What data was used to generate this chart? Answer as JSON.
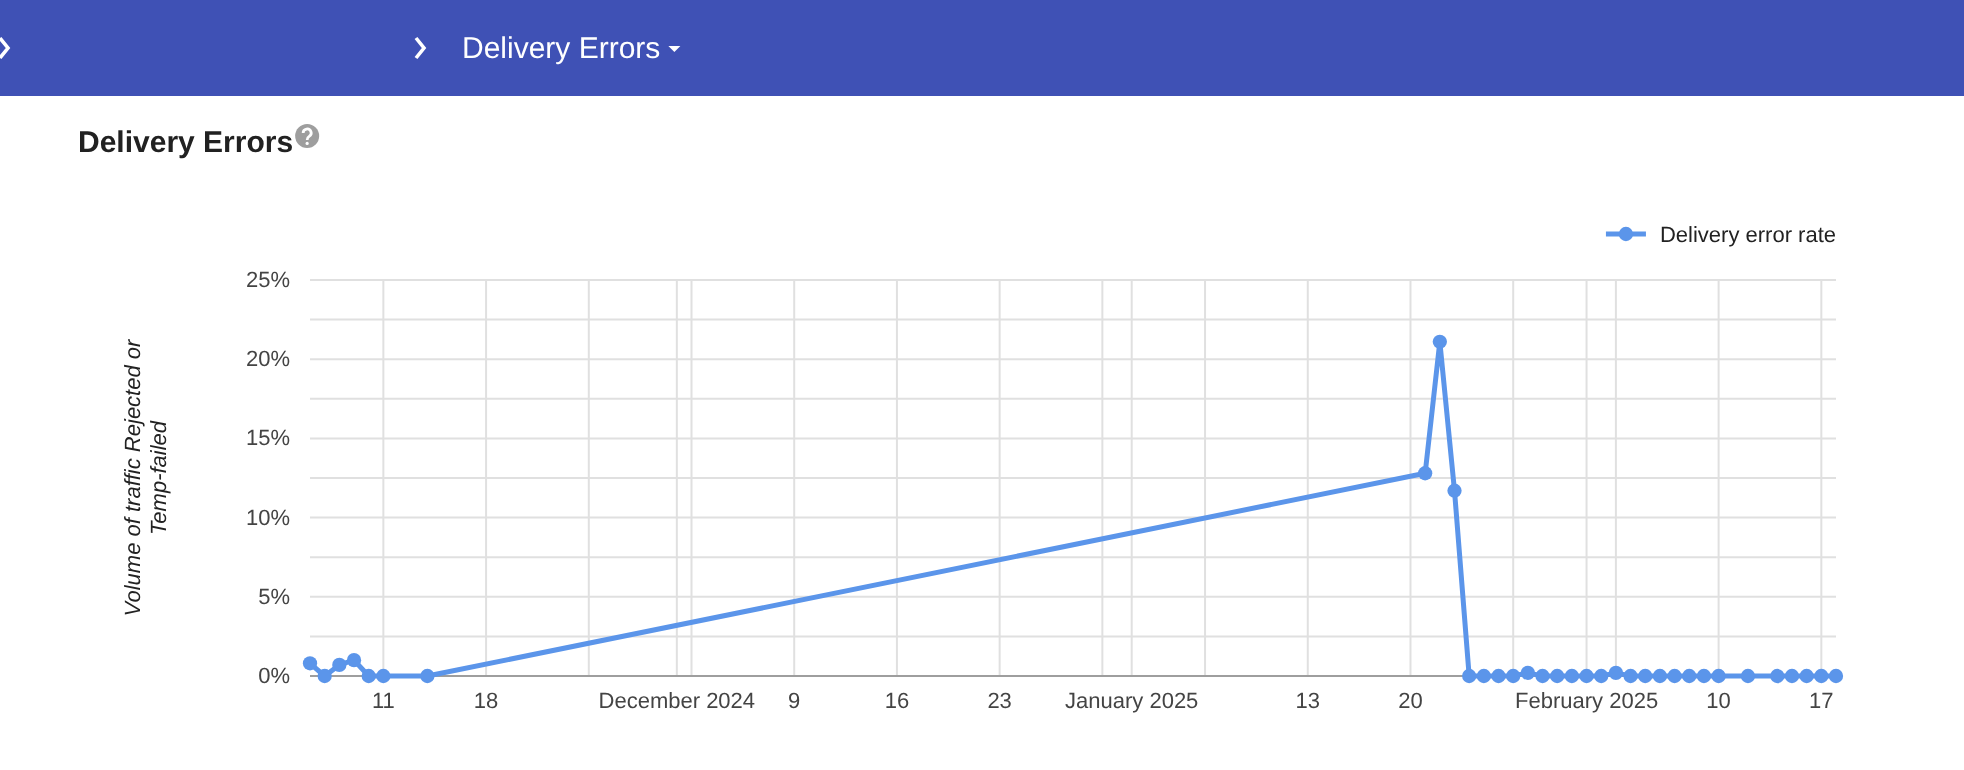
{
  "chart_data": {
    "type": "line",
    "title": "Delivery Errors",
    "ylabel": "Volume of traffic Rejected or Temp-failed",
    "annotations": [
      "Delivery Errors"
    ],
    "x": [
      "2024-11-06",
      "2024-11-07",
      "2024-11-08",
      "2024-11-09",
      "2024-11-10",
      "2024-11-11",
      "2024-11-14",
      "2025-01-21",
      "2025-01-22",
      "2025-01-23",
      "2025-01-24",
      "2025-01-25",
      "2025-01-26",
      "2025-01-27",
      "2025-01-28",
      "2025-01-29",
      "2025-01-30",
      "2025-01-31",
      "2025-02-01",
      "2025-02-02",
      "2025-02-03",
      "2025-02-04",
      "2025-02-05",
      "2025-02-06",
      "2025-02-07",
      "2025-02-08",
      "2025-02-09",
      "2025-02-10",
      "2025-02-12",
      "2025-02-14",
      "2025-02-15",
      "2025-02-16",
      "2025-02-17",
      "2025-02-18"
    ],
    "series": [
      {
        "name": "Delivery error rate",
        "color": "#5b95ea",
        "values": [
          0.8,
          0,
          0.7,
          1.0,
          0,
          0,
          0,
          12.8,
          21.1,
          11.7,
          0,
          0,
          0,
          0,
          0.2,
          0,
          0,
          0,
          0,
          0,
          0.2,
          0,
          0,
          0,
          0,
          0,
          0,
          0,
          0,
          0,
          0,
          0,
          0,
          0
        ]
      }
    ],
    "xlim": [
      "2024-11-06",
      "2025-02-18"
    ],
    "xticks": [
      {
        "value": "2024-11-11",
        "label": "11"
      },
      {
        "value": "2024-11-18",
        "label": "18"
      },
      {
        "value": "2024-11-25",
        "label": null
      },
      {
        "value": "2024-12-01",
        "label": "December 2024"
      },
      {
        "value": "2024-12-02",
        "label": null
      },
      {
        "value": "2024-12-09",
        "label": "9"
      },
      {
        "value": "2024-12-16",
        "label": "16"
      },
      {
        "value": "2024-12-23",
        "label": "23"
      },
      {
        "value": "2024-12-30",
        "label": null
      },
      {
        "value": "2025-01-01",
        "label": "January 2025"
      },
      {
        "value": "2025-01-06",
        "label": null
      },
      {
        "value": "2025-01-13",
        "label": "13"
      },
      {
        "value": "2025-01-20",
        "label": "20"
      },
      {
        "value": "2025-01-27",
        "label": null
      },
      {
        "value": "2025-02-01",
        "label": "February 2025"
      },
      {
        "value": "2025-02-03",
        "label": null
      },
      {
        "value": "2025-02-10",
        "label": "10"
      },
      {
        "value": "2025-02-17",
        "label": "17"
      }
    ],
    "ylim": [
      0,
      25
    ],
    "yticks": [
      {
        "value": 0,
        "label": "0%"
      },
      {
        "value": 2.5,
        "label": null
      },
      {
        "value": 5,
        "label": "5%"
      },
      {
        "value": 7.5,
        "label": null
      },
      {
        "value": 10,
        "label": "10%"
      },
      {
        "value": 12.5,
        "label": null
      },
      {
        "value": 15,
        "label": "15%"
      },
      {
        "value": 17.5,
        "label": null
      },
      {
        "value": 20,
        "label": "20%"
      },
      {
        "value": 22.5,
        "label": null
      },
      {
        "value": 25,
        "label": "25%"
      }
    ],
    "grid": true,
    "legend": "top right",
    "marker": "circle",
    "line_style": "solid"
  }
}
